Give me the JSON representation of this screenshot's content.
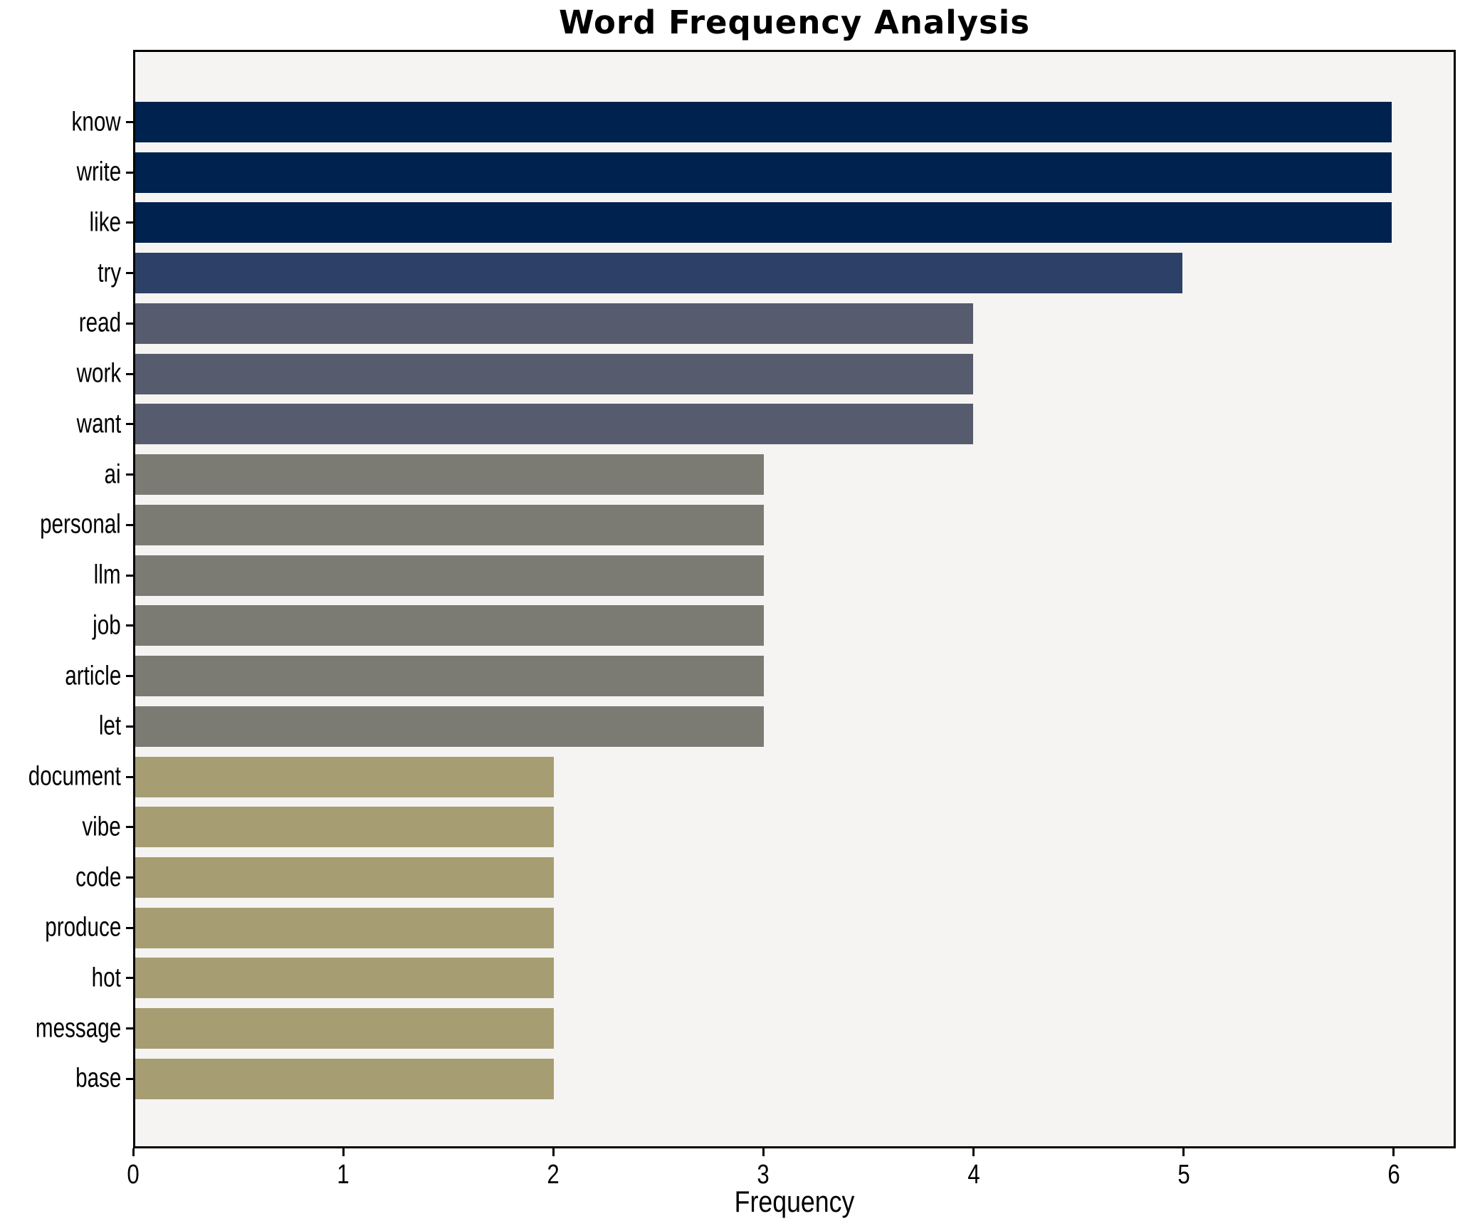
{
  "figure": {
    "title": "Word Frequency Analysis",
    "xlabel": "Frequency"
  },
  "chart_data": {
    "type": "bar",
    "orientation": "horizontal",
    "title": "Word Frequency Analysis",
    "xlabel": "Frequency",
    "ylabel": "",
    "categories": [
      "know",
      "write",
      "like",
      "try",
      "read",
      "work",
      "want",
      "ai",
      "personal",
      "llm",
      "job",
      "article",
      "let",
      "document",
      "vibe",
      "code",
      "produce",
      "hot",
      "message",
      "base"
    ],
    "values": [
      6,
      6,
      6,
      5,
      4,
      4,
      4,
      3,
      3,
      3,
      3,
      3,
      3,
      2,
      2,
      2,
      2,
      2,
      2,
      2
    ],
    "bar_colors": [
      "#00224e",
      "#00224e",
      "#00224e",
      "#2d4168",
      "#565c6e",
      "#565c6e",
      "#565c6e",
      "#7b7a73",
      "#7b7a73",
      "#7b7a73",
      "#7b7a73",
      "#7b7a73",
      "#7b7a73",
      "#a69d73",
      "#a69d73",
      "#a69d73",
      "#a69d73",
      "#a69d73",
      "#a69d73",
      "#a69d73"
    ],
    "xticks": [
      0,
      1,
      2,
      3,
      4,
      5,
      6
    ],
    "xlim": [
      0,
      6.295
    ],
    "grid": false,
    "legend_position": null,
    "plot_bg": "#f5f4f2",
    "figure_bg": "#ffffff",
    "spine_color": "#000000",
    "text_color": "#000000"
  }
}
